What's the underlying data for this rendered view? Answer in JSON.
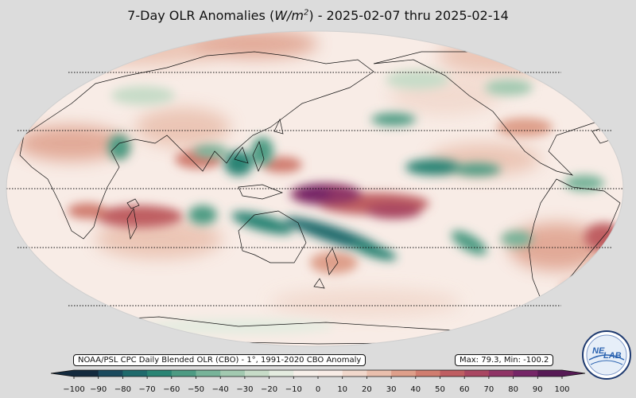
{
  "title": {
    "prefix": "7-Day OLR Anomalies (",
    "unit_base": "W/m",
    "unit_exp": "2",
    "suffix": ") - 2025-02-07 thru 2025-02-14"
  },
  "source_label": "NOAA/PSL CPC Daily Blended OLR (CBO) - 1°, 1991-2020 CBO Anomaly",
  "stats": {
    "text": "Max: 79.3,  Min: -100.2",
    "max": 79.3,
    "min": -100.2
  },
  "colorbar": {
    "min": -100,
    "max": 100,
    "ticks": [
      "−100",
      "−90",
      "−80",
      "−70",
      "−60",
      "−50",
      "−40",
      "−30",
      "−20",
      "−10",
      "0",
      "10",
      "20",
      "30",
      "40",
      "50",
      "60",
      "70",
      "80",
      "90",
      "100"
    ],
    "colors": [
      "#132a3e",
      "#1b4a5e",
      "#1f6a6c",
      "#2a8474",
      "#4d9b83",
      "#77b399",
      "#a2c9b0",
      "#c7dcc8",
      "#e4ece0",
      "#f7f0ea",
      "#f8ece6",
      "#f1d8cc",
      "#e9bfad",
      "#de9f8a",
      "#d07d6f",
      "#bf5e62",
      "#a94762",
      "#8f3466",
      "#752667",
      "#561a55"
    ]
  },
  "logo": {
    "text_a": "NE",
    "text_b": "LAB",
    "accent": "#2b63b0"
  }
}
